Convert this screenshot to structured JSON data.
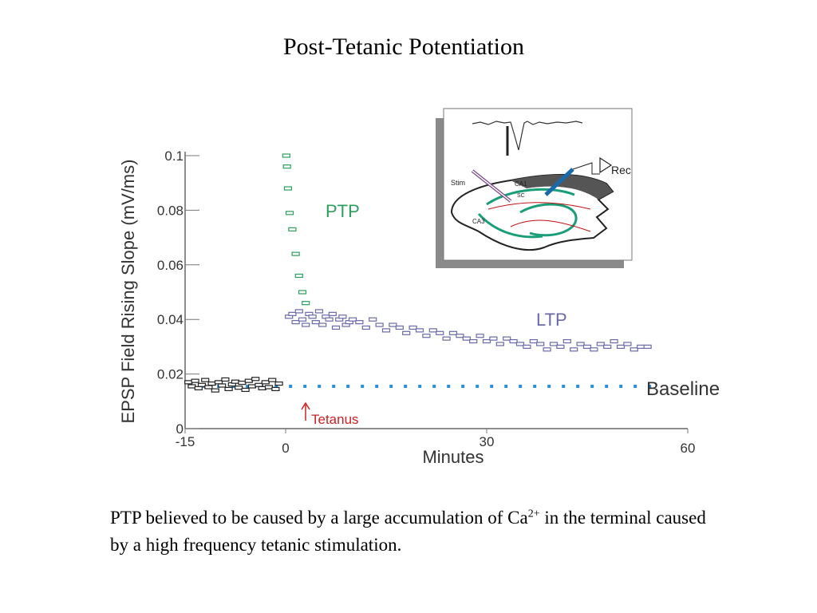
{
  "slide": {
    "title": "Post-Tetanic Potentiation",
    "caption_part1": "PTP believed to be caused by a large accumulation of Ca",
    "caption_sup": "2+",
    "caption_part2": " in the terminal caused by a high frequency tetanic stimulation."
  },
  "inset": {
    "labels": {
      "stim": "Stim",
      "ca1": "CA1",
      "sc": "SC",
      "ca3": "CA3",
      "rec": "Rec"
    }
  },
  "chart_data": {
    "type": "scatter",
    "xlabel": "Minutes",
    "ylabel": "EPSP Field Rising Slope (mV/ms)",
    "xlim": [
      -15,
      60
    ],
    "ylim": [
      0,
      0.1
    ],
    "x_ticks": [
      -15,
      0,
      30,
      60
    ],
    "y_ticks": [
      0,
      0.02,
      0.04,
      0.06,
      0.08,
      0.1
    ],
    "x_tick_labels": [
      "-15",
      "0",
      "30",
      "60"
    ],
    "y_tick_labels": [
      "0",
      "0.02",
      "0.04",
      "0.06",
      "0.08",
      "0.1"
    ],
    "annotations": {
      "ptp": "PTP",
      "ltp": "LTP",
      "baseline": "Baseline",
      "tetanus": "Tetanus"
    },
    "baseline_value": 0.0155,
    "tetanus_time": 0,
    "colors": {
      "baseline_points": "#222222",
      "ptp_points": "#2e9e5e",
      "ltp_points": "#6a6aa8",
      "baseline_line": "#2a8fd6",
      "tetanus": "#cc2222",
      "axis": "#555555"
    },
    "series": [
      {
        "name": "Baseline",
        "x": [
          -14.5,
          -14.0,
          -13.5,
          -13.0,
          -12.5,
          -12.0,
          -11.5,
          -11.0,
          -10.5,
          -10.0,
          -9.5,
          -9.0,
          -8.5,
          -8.0,
          -7.5,
          -7.0,
          -6.5,
          -6.0,
          -5.5,
          -5.0,
          -4.5,
          -4.0,
          -3.5,
          -3.0,
          -2.5,
          -2.0,
          -1.5,
          -1.0
        ],
        "y": [
          0.017,
          0.0155,
          0.0175,
          0.0148,
          0.016,
          0.0178,
          0.0152,
          0.0165,
          0.014,
          0.017,
          0.0158,
          0.018,
          0.0145,
          0.0162,
          0.0172,
          0.015,
          0.0168,
          0.0142,
          0.0175,
          0.0155,
          0.0182,
          0.016,
          0.0148,
          0.017,
          0.0152,
          0.0178,
          0.0145,
          0.0165
        ]
      },
      {
        "name": "PTP",
        "x": [
          0.1,
          0.2,
          0.35,
          0.6,
          1.0,
          1.5,
          2.0,
          2.5,
          3.0
        ],
        "y": [
          0.1,
          0.096,
          0.088,
          0.079,
          0.073,
          0.064,
          0.056,
          0.05,
          0.046
        ]
      },
      {
        "name": "LTP",
        "x": [
          0.5,
          1.0,
          1.5,
          2.0,
          2.5,
          3.0,
          3.5,
          4.0,
          4.5,
          5.0,
          5.5,
          6.0,
          6.5,
          7.0,
          7.5,
          8.0,
          8.5,
          9.0,
          9.5,
          10.0,
          11.0,
          12.0,
          13.0,
          14.0,
          15.0,
          16.0,
          17.0,
          18.0,
          19.0,
          20.0,
          21.0,
          22.0,
          23.0,
          24.0,
          25.0,
          26.0,
          27.0,
          28.0,
          29.0,
          30.0,
          31.0,
          32.0,
          33.0,
          34.0,
          35.0,
          36.0,
          37.0,
          38.0,
          39.0,
          40.0,
          41.0,
          42.0,
          43.0,
          44.0,
          45.0,
          46.0,
          47.0,
          48.0,
          49.0,
          50.0,
          51.0,
          52.0,
          53.0,
          54.0
        ],
        "y": [
          0.041,
          0.042,
          0.039,
          0.043,
          0.04,
          0.038,
          0.042,
          0.041,
          0.039,
          0.043,
          0.038,
          0.041,
          0.04,
          0.042,
          0.037,
          0.04,
          0.041,
          0.038,
          0.039,
          0.04,
          0.039,
          0.037,
          0.04,
          0.038,
          0.036,
          0.038,
          0.037,
          0.035,
          0.037,
          0.036,
          0.034,
          0.036,
          0.035,
          0.033,
          0.035,
          0.034,
          0.033,
          0.032,
          0.034,
          0.032,
          0.033,
          0.031,
          0.033,
          0.032,
          0.031,
          0.03,
          0.032,
          0.031,
          0.029,
          0.031,
          0.03,
          0.032,
          0.029,
          0.031,
          0.03,
          0.029,
          0.031,
          0.03,
          0.032,
          0.03,
          0.031,
          0.029,
          0.03,
          0.03
        ]
      }
    ]
  }
}
